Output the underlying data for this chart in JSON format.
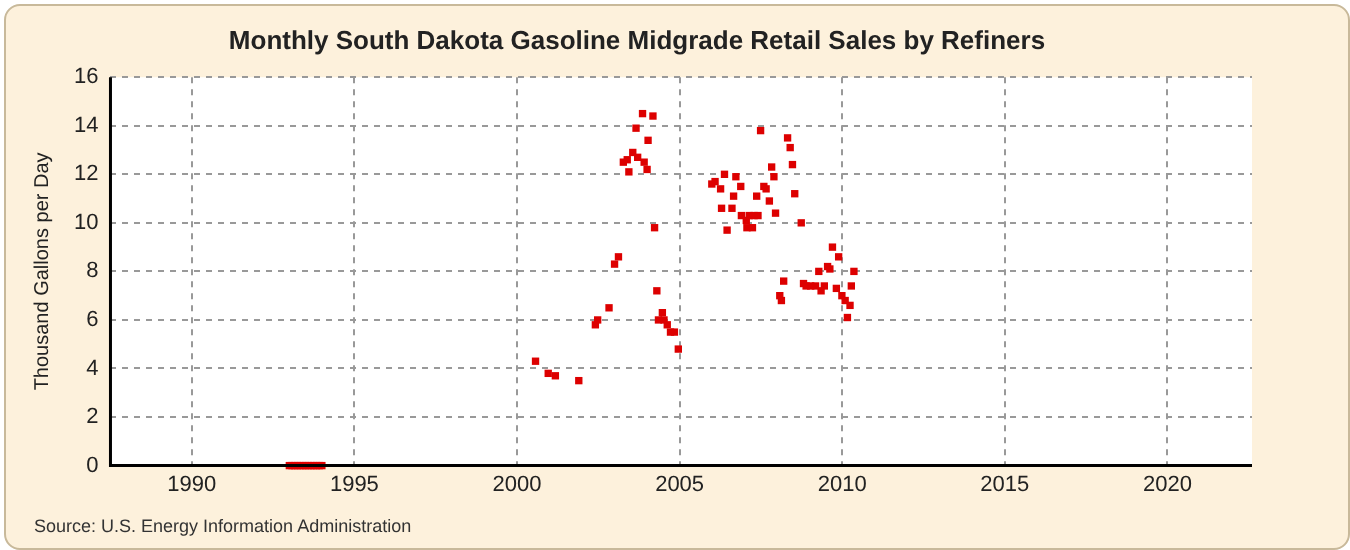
{
  "chart_data": {
    "type": "scatter",
    "title": "Monthly South Dakota Gasoline Midgrade Retail Sales by Refiners",
    "ylabel": "Thousand Gallons per Day",
    "annotations": [
      "Source: U.S. Energy Information Administration"
    ],
    "xlim": [
      1987.5,
      2022.6
    ],
    "xticks": [
      1990,
      1995,
      2000,
      2005,
      2010,
      2015,
      2020
    ],
    "ylim": [
      0,
      16
    ],
    "yticks": [
      0,
      2,
      4,
      6,
      8,
      10,
      12,
      14,
      16
    ],
    "grid": true,
    "legend": false,
    "marker": "square",
    "series": [
      {
        "color": "#dd0000",
        "x": [
          1993.0,
          1993.08,
          1993.17,
          1993.25,
          1993.33,
          1993.42,
          1993.5,
          1993.58,
          1993.67,
          1993.75,
          1993.83,
          1993.92,
          1994.0,
          2000.57,
          2000.96,
          2001.18,
          2001.9,
          2002.41,
          2002.48,
          2002.83,
          2003.0,
          2003.12,
          2003.27,
          2003.39,
          2003.44,
          2003.56,
          2003.66,
          2003.71,
          2003.86,
          2003.91,
          2004.0,
          2004.03,
          2004.18,
          2004.23,
          2004.3,
          2004.35,
          2004.47,
          2004.52,
          2004.62,
          2004.72,
          2004.84,
          2004.96,
          2005.99,
          2006.09,
          2006.26,
          2006.29,
          2006.38,
          2006.46,
          2006.61,
          2006.66,
          2006.73,
          2006.88,
          2006.9,
          2007.05,
          2007.07,
          2007.14,
          2007.24,
          2007.29,
          2007.37,
          2007.41,
          2007.49,
          2007.59,
          2007.66,
          2007.76,
          2007.83,
          2007.9,
          2007.95,
          2008.08,
          2008.13,
          2008.2,
          2008.32,
          2008.4,
          2008.47,
          2008.54,
          2008.74,
          2008.81,
          2008.89,
          2009.03,
          2009.18,
          2009.28,
          2009.35,
          2009.45,
          2009.55,
          2009.62,
          2009.7,
          2009.82,
          2009.89,
          2009.99,
          2010.09,
          2010.16,
          2010.24,
          2010.28,
          2010.36
        ],
        "values": [
          0,
          0,
          0,
          0,
          0,
          0,
          0,
          0,
          0,
          0,
          0,
          0,
          0,
          4.3,
          3.8,
          3.7,
          3.5,
          5.8,
          6.0,
          6.5,
          8.3,
          8.6,
          12.5,
          12.6,
          12.1,
          12.9,
          13.9,
          12.7,
          14.5,
          12.5,
          12.2,
          13.4,
          14.4,
          9.8,
          7.2,
          6.0,
          6.3,
          6.0,
          5.8,
          5.5,
          5.5,
          4.8,
          11.6,
          11.7,
          11.4,
          10.6,
          12.0,
          9.7,
          10.6,
          11.1,
          11.9,
          11.5,
          10.3,
          10.1,
          9.8,
          10.3,
          9.8,
          10.3,
          11.1,
          10.3,
          13.8,
          11.5,
          11.4,
          10.9,
          12.3,
          11.9,
          10.4,
          7.0,
          6.8,
          7.6,
          13.5,
          13.1,
          12.4,
          11.2,
          10.0,
          7.5,
          7.4,
          7.4,
          7.4,
          8.0,
          7.2,
          7.4,
          8.2,
          8.1,
          9.0,
          7.3,
          8.6,
          7.0,
          6.8,
          6.1,
          6.6,
          7.4,
          8.0
        ]
      }
    ]
  }
}
